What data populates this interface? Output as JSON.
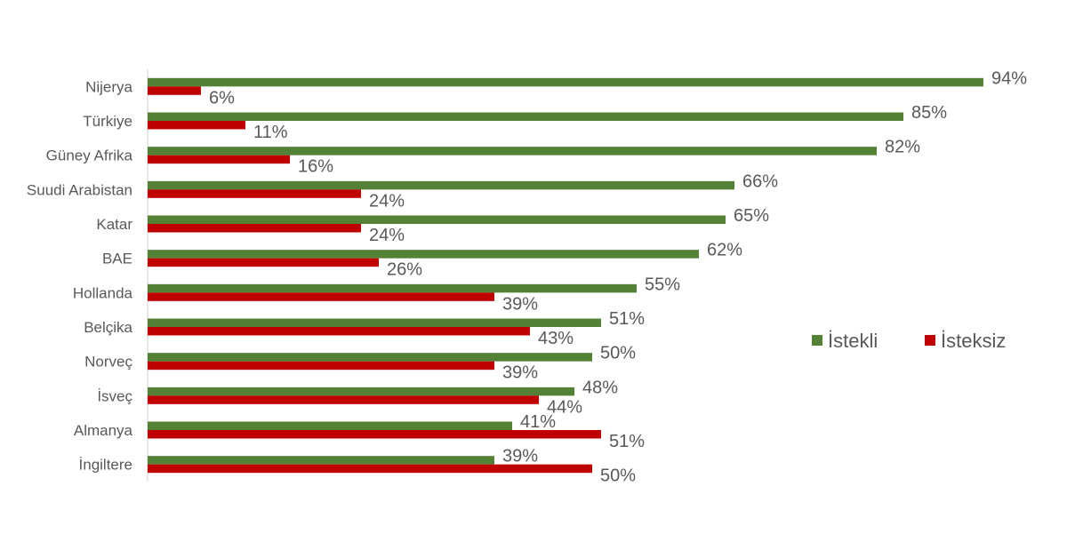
{
  "chart_data": {
    "type": "bar",
    "orientation": "horizontal",
    "categories": [
      "Nijerya",
      "Türkiye",
      "Güney Afrika",
      "Suudi Arabistan",
      "Katar",
      "BAE",
      "Hollanda",
      "Belçika",
      "Norveç",
      "İsveç",
      "Almanya",
      "İngiltere"
    ],
    "series": [
      {
        "name": "İstekli",
        "color": "#538135",
        "values": [
          94,
          85,
          82,
          66,
          65,
          62,
          55,
          51,
          50,
          48,
          41,
          39
        ]
      },
      {
        "name": "İsteksiz",
        "color": "#c00000",
        "values": [
          6,
          11,
          16,
          24,
          24,
          26,
          39,
          43,
          39,
          44,
          51,
          50
        ]
      }
    ],
    "value_suffix": "%",
    "xlim": [
      0,
      100
    ],
    "grid": false,
    "legend_position": "right"
  }
}
